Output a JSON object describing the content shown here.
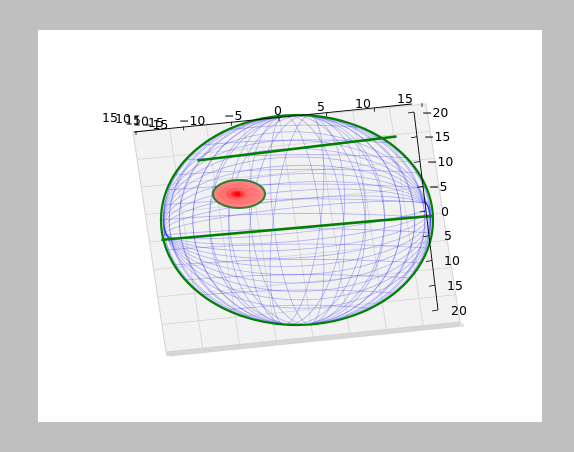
{
  "chart_data": {
    "type": "3d-surface",
    "title": "",
    "xlabel": "",
    "ylabel": "",
    "zlabel": "",
    "x_ticks": [
      "15",
      "10",
      "5",
      "0",
      "−5",
      "−10",
      "−15"
    ],
    "y_ticks": [
      "−20",
      "−15",
      "−10",
      "−5",
      "0",
      "5",
      "10",
      "15",
      "20"
    ],
    "z_ticks": [
      "15",
      "10",
      "15",
      "10",
      "15"
    ],
    "xlim": [
      -15,
      15
    ],
    "ylim": [
      -20,
      20
    ],
    "sphere": {
      "radius": 15,
      "wire_color": "#0000ff",
      "outline_color": "#008000"
    },
    "band": {
      "y_from": -4,
      "y_to": 1,
      "color": "#008000"
    },
    "disk": {
      "center_x": -4,
      "center_y": -2,
      "radius": 2.8,
      "fill": "#ff9090",
      "center_color": "#ff0000",
      "outline_color": "#2e7d32"
    },
    "grid": true,
    "pane_color": "#f2f2f2"
  }
}
